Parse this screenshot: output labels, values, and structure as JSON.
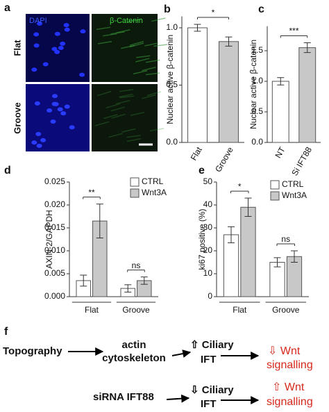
{
  "panel_a": {
    "label": "a",
    "columns": [
      "DAPI",
      "β-Catenin"
    ],
    "rows": [
      "Flat",
      "Groove"
    ]
  },
  "chart_data": [
    {
      "type": "bar",
      "label": "b",
      "ylabel": "Nuclear active β-catenin",
      "categories": [
        "Flat",
        "Groove"
      ],
      "values": [
        1.0,
        0.88
      ],
      "errors": [
        0.03,
        0.04
      ],
      "colors": [
        "#ffffff",
        "#c8c8c8"
      ],
      "annotation": "*",
      "ylim": [
        0,
        1.1
      ],
      "yticks": [
        {
          "value": 0,
          "label": "0.0"
        },
        {
          "value": 0.5,
          "label": "0.5"
        },
        {
          "value": 1,
          "label": "1.0"
        }
      ]
    },
    {
      "type": "bar",
      "label": "c",
      "ylabel": "Nuclear active β-catenin",
      "categories": [
        "NT",
        "Si IFT88"
      ],
      "values": [
        1.0,
        1.55
      ],
      "errors": [
        0.06,
        0.08
      ],
      "colors": [
        "#ffffff",
        "#c8c8c8"
      ],
      "annotation": "***",
      "ylim": [
        0,
        1.9
      ],
      "yticks": [
        {
          "value": 0,
          "label": "0.0"
        },
        {
          "value": 0.5,
          "label": "0.5"
        },
        {
          "value": 1,
          "label": "1.0"
        },
        {
          "value": 1.5,
          "label": "1.5"
        }
      ]
    },
    {
      "type": "bar",
      "label": "d",
      "ylabel": "AXIN-2/GAPDH",
      "categories": [
        "Flat",
        "Groove"
      ],
      "annotations": [
        "**",
        "ns"
      ],
      "series": [
        {
          "name": "CTRL",
          "color": "#ffffff",
          "values": [
            0.0035,
            0.0018
          ],
          "errors": [
            0.0012,
            0.0008
          ]
        },
        {
          "name": "Wnt3A",
          "color": "#c8c8c8",
          "values": [
            0.0165,
            0.0035
          ],
          "errors": [
            0.0037,
            0.0008
          ]
        }
      ],
      "ylim": [
        0,
        0.025
      ],
      "yticks": [
        {
          "value": 0,
          "label": "0.000"
        },
        {
          "value": 0.005,
          "label": "0.005"
        },
        {
          "value": 0.01,
          "label": "0.010"
        },
        {
          "value": 0.015,
          "label": "0.015"
        },
        {
          "value": 0.02,
          "label": "0.020"
        },
        {
          "value": 0.025,
          "label": "0.025"
        }
      ]
    },
    {
      "type": "bar",
      "label": "e",
      "ylabel": "ki67 positive (%)",
      "categories": [
        "Flat",
        "Groove"
      ],
      "annotations": [
        "*",
        "ns"
      ],
      "series": [
        {
          "name": "CTRL",
          "color": "#ffffff",
          "values": [
            27,
            15
          ],
          "errors": [
            3.5,
            2
          ]
        },
        {
          "name": "Wnt3A",
          "color": "#c8c8c8",
          "values": [
            39,
            17.5
          ],
          "errors": [
            4,
            2.5
          ]
        }
      ],
      "ylim": [
        0,
        50
      ],
      "yticks": [
        0,
        10,
        20,
        30,
        40,
        50
      ]
    }
  ],
  "panel_f": {
    "label": "f",
    "rows": [
      {
        "nodes": [
          {
            "lines": [
              "Topography"
            ]
          },
          {
            "lines": [
              "actin",
              "cytoskeleton"
            ]
          },
          {
            "lines": [
              "⇧ Ciliary",
              "IFT"
            ]
          },
          {
            "lines": [
              "⇩ Wnt",
              "signalling"
            ]
          }
        ]
      },
      {
        "nodes": [
          {
            "lines": [
              "siRNA IFT88"
            ]
          },
          {
            "lines": [
              "⇩ Ciliary",
              "IFT"
            ]
          },
          {
            "lines": [
              "⇧ Wnt",
              "signalling"
            ]
          }
        ]
      }
    ]
  }
}
